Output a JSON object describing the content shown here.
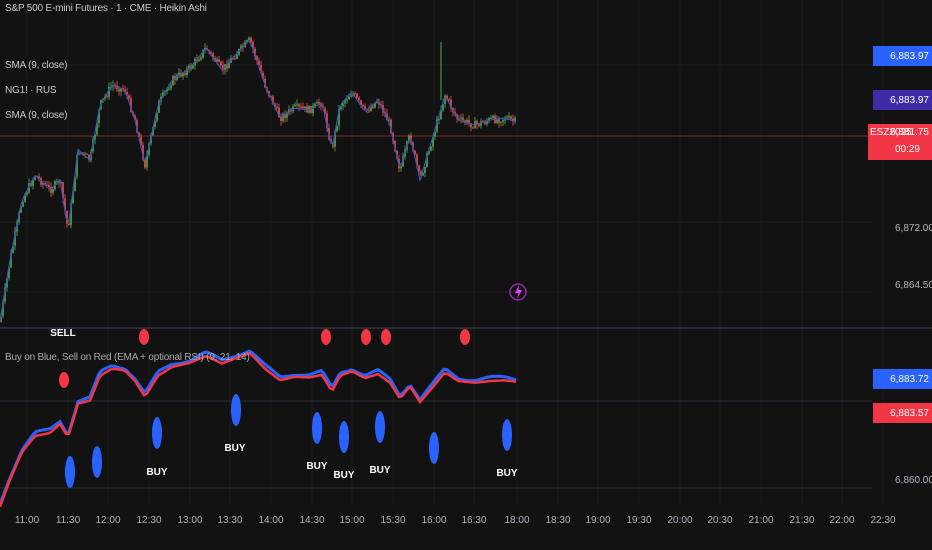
{
  "colors": {
    "background": "#121212",
    "grid": "#1f1f1f",
    "up_candle": "#4caf50",
    "down_candle": "#ef5350",
    "sma_line": "#3f51b5",
    "blue": "#2962ff",
    "red": "#f23645"
  },
  "legend": {
    "symbol": "S&P 500 E-mini Futures · 1 · CME · Heikin Ashi",
    "sma1": "SMA (9, close)",
    "ng1": "NG1! · RUS",
    "sma2": "SMA (9, close)",
    "indicator": "Buy on Blue, Sell on Red (EMA + optional RSI) (9, 21, 14)"
  },
  "price_tags": {
    "top": "6,883.97",
    "sma": "6,883.97",
    "symbol": "ESZ2025",
    "last": "6,881.75",
    "countdown": "00:29",
    "ind_blue": "6,883.72",
    "ind_red": "6,883.57"
  },
  "price_axis": [
    "6,872.00",
    "6,864.50",
    "6,860.00"
  ],
  "time_axis": [
    "11:00",
    "11:30",
    "12:00",
    "12:30",
    "13:00",
    "13:30",
    "14:00",
    "14:30",
    "15:00",
    "15:30",
    "16:00",
    "16:30",
    "18:00",
    "18:30",
    "19:00",
    "19:30",
    "20:00",
    "20:30",
    "21:00",
    "21:30",
    "22:00",
    "22:30"
  ],
  "signals": {
    "sell_label": "SELL",
    "buy_label": "BUY"
  },
  "icons": {
    "alert": "lightning-icon"
  }
}
